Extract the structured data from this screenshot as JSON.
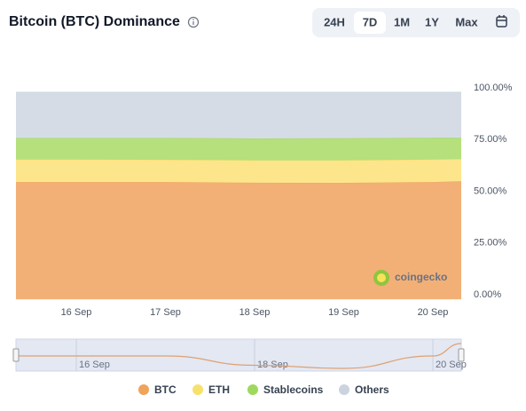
{
  "chart_data": {
    "type": "area",
    "stacked": true,
    "title": "Bitcoin (BTC) Dominance",
    "range_buttons": [
      "24H",
      "7D",
      "1M",
      "1Y",
      "Max"
    ],
    "active_range": "7D",
    "watermark": "coingecko",
    "categories": [
      null,
      "16 Sep",
      "17 Sep",
      "18 Sep",
      "19 Sep",
      "20 Sep",
      null
    ],
    "series": [
      {
        "name": "BTC",
        "color": "#f2b077",
        "legend_color": "#f0a35a",
        "values": [
          56.6,
          56.6,
          56.6,
          56.3,
          56.2,
          56.6,
          57.0
        ]
      },
      {
        "name": "ETH",
        "color": "#fde58c",
        "legend_color": "#f8e16b",
        "values": [
          10.9,
          10.9,
          10.8,
          10.8,
          10.9,
          10.9,
          10.7
        ]
      },
      {
        "name": "Stablecoins",
        "color": "#b5e07c",
        "legend_color": "#9fd85e",
        "values": [
          10.4,
          10.4,
          10.5,
          10.6,
          10.7,
          10.5,
          10.3
        ]
      },
      {
        "name": "Others",
        "color": "#d6dce6",
        "legend_color": "#cbd3df",
        "values": [
          22.1,
          22.1,
          22.1,
          22.3,
          22.2,
          22.0,
          22.0
        ]
      }
    ],
    "ylim": [
      0,
      100
    ],
    "yticks": [
      {
        "value": 0,
        "label": "0.00%"
      },
      {
        "value": 25,
        "label": "25.00%"
      },
      {
        "value": 50,
        "label": "50.00%"
      },
      {
        "value": 75,
        "label": "75.00%"
      },
      {
        "value": 100,
        "label": "100.00%"
      }
    ],
    "navigator_series": 0
  }
}
